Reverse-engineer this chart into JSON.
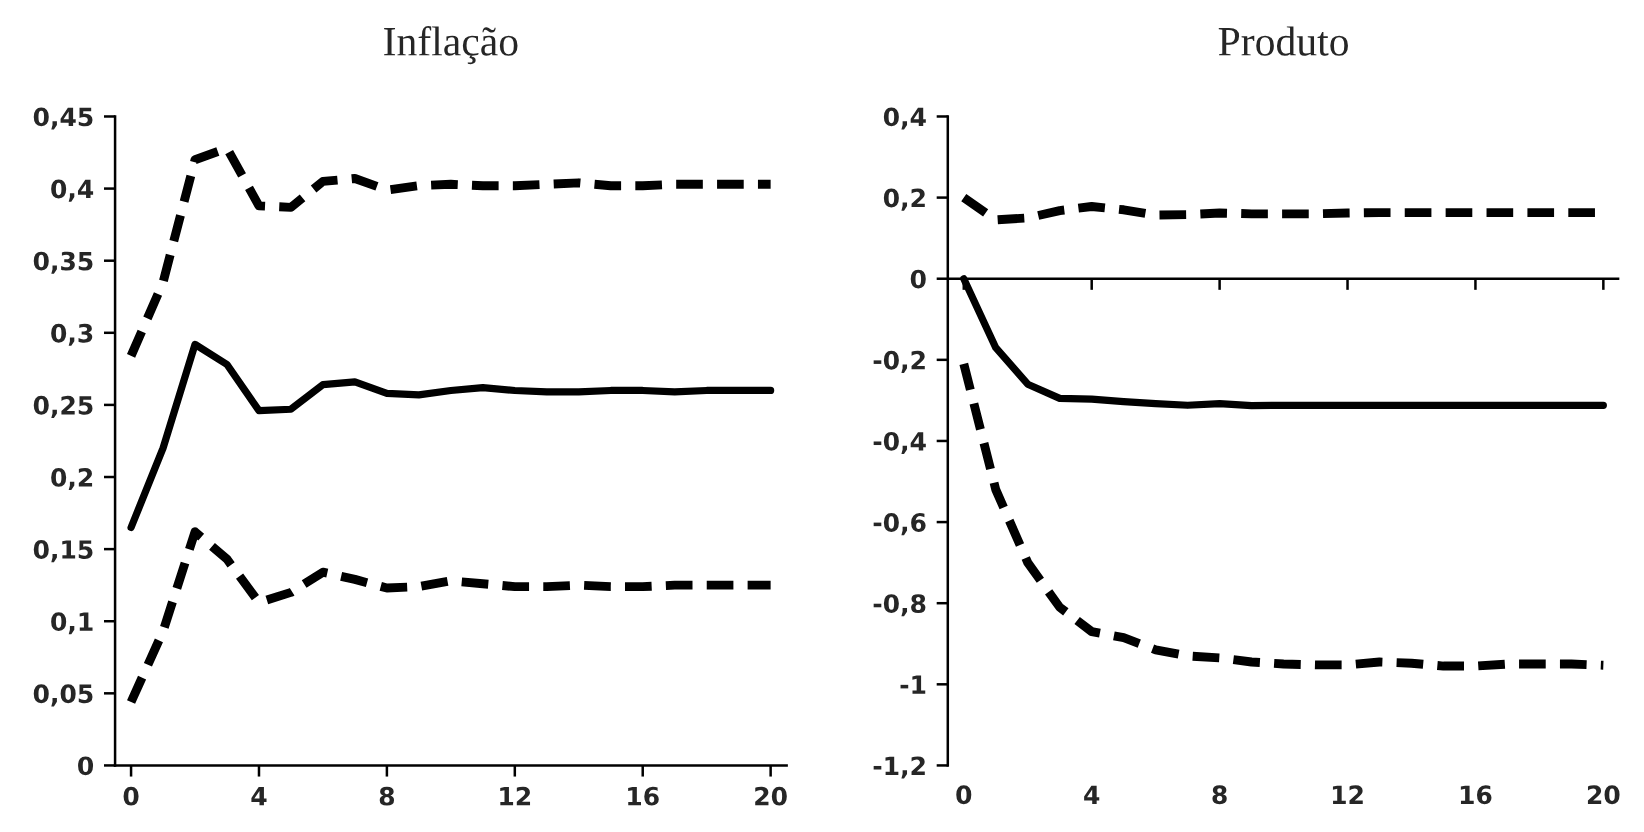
{
  "chart_data": [
    {
      "type": "line",
      "title": "Inflação",
      "x": [
        0,
        1,
        2,
        3,
        4,
        5,
        6,
        7,
        8,
        9,
        10,
        11,
        12,
        13,
        14,
        15,
        16,
        17,
        18,
        19,
        20
      ],
      "xlim": [
        -0.5,
        20.5
      ],
      "xticks": [
        0,
        4,
        8,
        12,
        16,
        20
      ],
      "ylim": [
        0,
        0.45
      ],
      "yticks": [
        0,
        {
          "value": 0.05,
          "label": "0,05"
        },
        {
          "value": 0.1,
          "label": "0,1"
        },
        {
          "value": 0.15,
          "label": "0,15"
        },
        {
          "value": 0.2,
          "label": "0,2"
        },
        {
          "value": 0.25,
          "label": "0,25"
        },
        {
          "value": 0.3,
          "label": "0,3"
        },
        {
          "value": 0.35,
          "label": "0,35"
        },
        {
          "value": 0.4,
          "label": "0,4"
        },
        {
          "value": 0.45,
          "label": "0,45"
        }
      ],
      "grid": false,
      "legend": false,
      "series": [
        {
          "color": "#000000",
          "line_style": "dashed",
          "values": [
            0.284,
            0.335,
            0.42,
            0.428,
            0.388,
            0.387,
            0.405,
            0.407,
            0.399,
            0.402,
            0.403,
            0.402,
            0.402,
            0.403,
            0.404,
            0.402,
            0.402,
            0.403,
            0.403,
            0.403,
            0.403
          ]
        },
        {
          "color": "#000000",
          "line_style": "solid",
          "values": [
            0.165,
            0.22,
            0.292,
            0.278,
            0.246,
            0.247,
            0.264,
            0.266,
            0.258,
            0.257,
            0.26,
            0.262,
            0.26,
            0.259,
            0.259,
            0.26,
            0.26,
            0.259,
            0.26,
            0.26,
            0.26
          ]
        },
        {
          "color": "#000000",
          "line_style": "dashed",
          "values": [
            0.044,
            0.093,
            0.162,
            0.143,
            0.113,
            0.12,
            0.134,
            0.129,
            0.123,
            0.124,
            0.128,
            0.126,
            0.124,
            0.124,
            0.125,
            0.124,
            0.124,
            0.125,
            0.125,
            0.125,
            0.125
          ]
        }
      ]
    },
    {
      "type": "line",
      "title": "Produto",
      "x": [
        0,
        1,
        2,
        3,
        4,
        5,
        6,
        7,
        8,
        9,
        10,
        11,
        12,
        13,
        14,
        15,
        16,
        17,
        18,
        19,
        20
      ],
      "xlim": [
        -0.5,
        20.5
      ],
      "xticks": [
        0,
        4,
        8,
        12,
        16,
        20
      ],
      "ylim": [
        -1.2,
        0.4
      ],
      "yticks": [
        {
          "value": -1.2,
          "label": "-1,2"
        },
        {
          "value": -1,
          "label": "-1"
        },
        {
          "value": -0.8,
          "label": "-0,8"
        },
        {
          "value": -0.6,
          "label": "-0,6"
        },
        {
          "value": -0.4,
          "label": "-0,4"
        },
        {
          "value": -0.2,
          "label": "-0,2"
        },
        0,
        {
          "value": 0.2,
          "label": "0,2"
        },
        {
          "value": 0.4,
          "label": "0,4"
        }
      ],
      "grid": false,
      "legend": false,
      "ref_lines": [
        {
          "axis": "y",
          "value": 0,
          "color": "#000000"
        }
      ],
      "series": [
        {
          "color": "#000000",
          "line_style": "dashed",
          "values": [
            0.2,
            0.145,
            0.15,
            0.168,
            0.178,
            0.17,
            0.157,
            0.158,
            0.162,
            0.16,
            0.16,
            0.16,
            0.162,
            0.163,
            0.163,
            0.163,
            0.163,
            0.163,
            0.163,
            0.163,
            0.163
          ]
        },
        {
          "color": "#000000",
          "line_style": "solid",
          "values": [
            0,
            -0.17,
            -0.26,
            -0.295,
            -0.297,
            -0.303,
            -0.308,
            -0.312,
            -0.308,
            -0.313,
            -0.312,
            -0.312,
            -0.312,
            -0.312,
            -0.312,
            -0.312,
            -0.312,
            -0.312,
            -0.312,
            -0.312,
            -0.312
          ]
        },
        {
          "color": "#000000",
          "line_style": "dashed",
          "values": [
            -0.21,
            -0.52,
            -0.7,
            -0.81,
            -0.87,
            -0.885,
            -0.915,
            -0.93,
            -0.935,
            -0.945,
            -0.95,
            -0.952,
            -0.952,
            -0.945,
            -0.948,
            -0.955,
            -0.955,
            -0.95,
            -0.95,
            -0.95,
            -0.953
          ]
        }
      ]
    }
  ]
}
